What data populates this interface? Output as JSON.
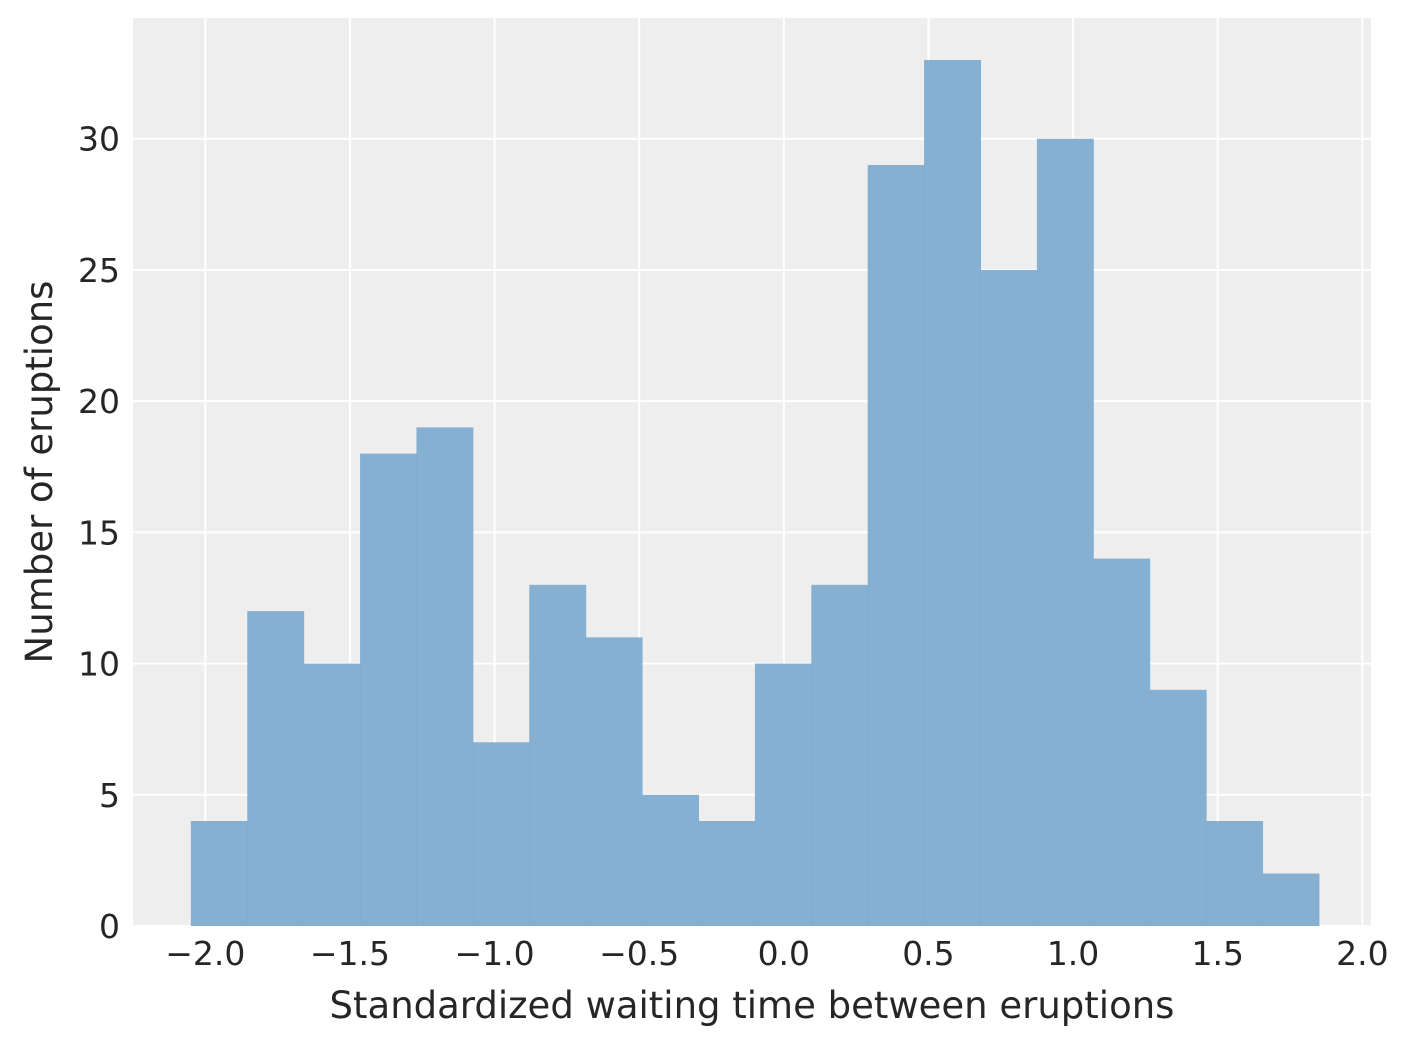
{
  "chart_data": {
    "type": "bar",
    "title": "",
    "xlabel": "Standardized waiting time between eruptions",
    "ylabel": "Number of eruptions",
    "xlim": [
      -2.25,
      2.03
    ],
    "ylim": [
      0,
      34.6
    ],
    "grid": true,
    "x_ticks": [
      -2.0,
      -1.5,
      -1.0,
      -0.5,
      0.0,
      0.5,
      1.0,
      1.5,
      2.0
    ],
    "x_tick_labels": [
      "−2.0",
      "−1.5",
      "−1.0",
      "−0.5",
      "0.0",
      "0.5",
      "1.0",
      "1.5",
      "2.0"
    ],
    "y_ticks": [
      0,
      5,
      10,
      15,
      20,
      25,
      30
    ],
    "y_tick_labels": [
      "0",
      "5",
      "10",
      "15",
      "20",
      "25",
      "30"
    ],
    "bin_edges": [
      -2.05,
      -1.855,
      -1.66,
      -1.465,
      -1.27,
      -1.075,
      -0.88,
      -0.685,
      -0.49,
      -0.295,
      -0.1,
      0.095,
      0.29,
      0.485,
      0.68,
      0.875,
      1.07,
      1.265,
      1.46,
      1.655,
      1.85
    ],
    "values": [
      4,
      12,
      10,
      18,
      19,
      7,
      13,
      11,
      5,
      4,
      10,
      13,
      29,
      33,
      25,
      30,
      14,
      9,
      4,
      2
    ],
    "bar_color": "#7aa9cd",
    "background_color": "#eeeeee"
  }
}
